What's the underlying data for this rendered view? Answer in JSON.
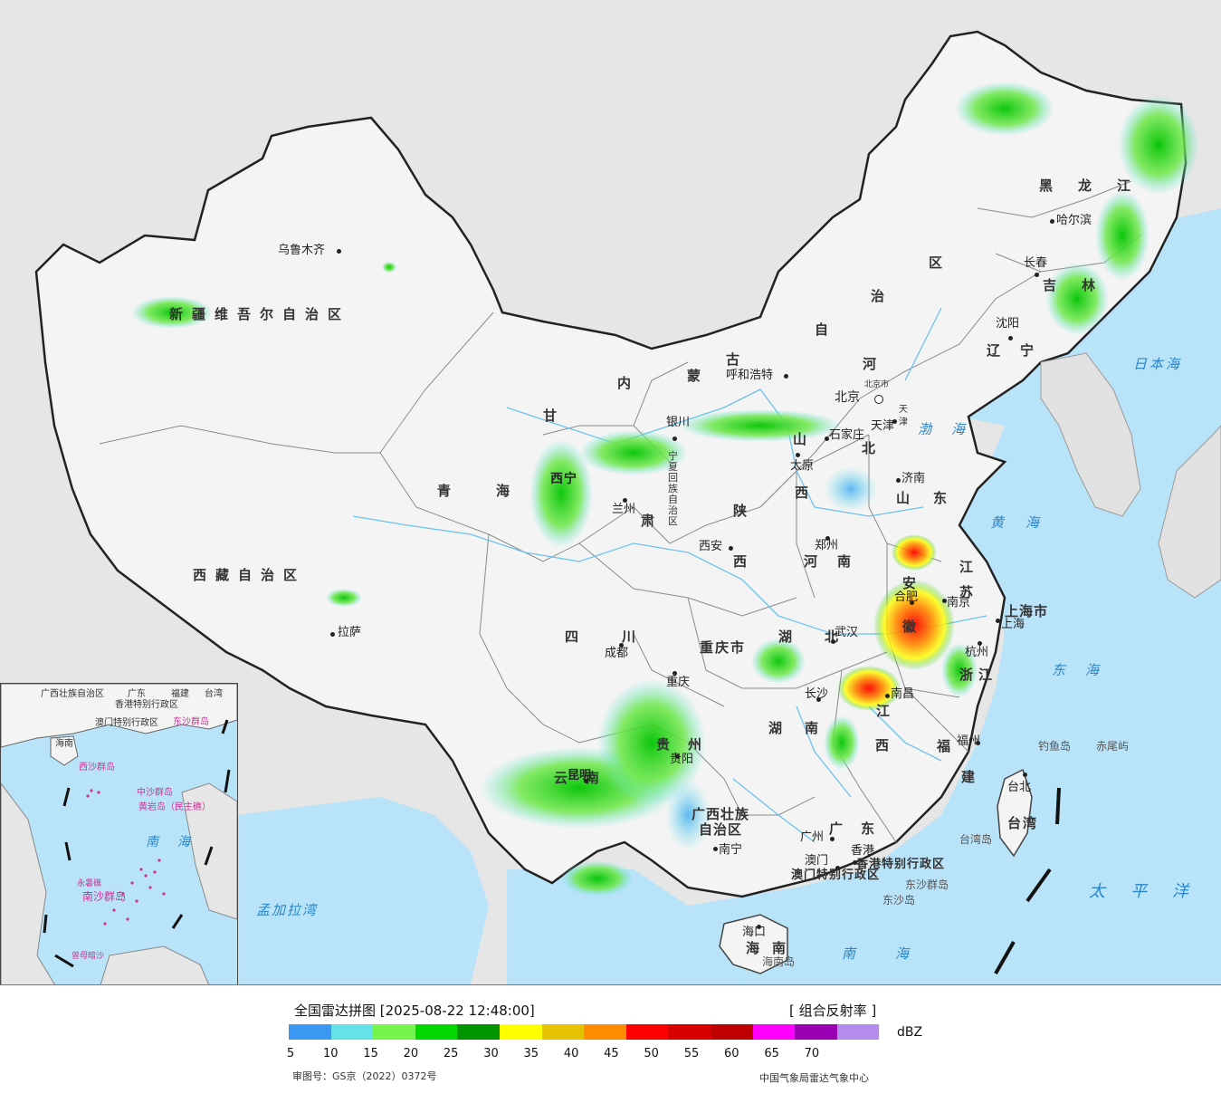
{
  "legend": {
    "title": "全国雷达拼图 [2025-08-22 12:48:00]",
    "product": "[ 组合反射率 ]",
    "unit": "dBZ",
    "colors": [
      "#3a97f2",
      "#63e3e8",
      "#76f44e",
      "#00d800",
      "#009400",
      "#ffff00",
      "#e6c200",
      "#ff8c00",
      "#ff0000",
      "#d90000",
      "#c00000",
      "#ff00ff",
      "#9b00b4",
      "#b48ceb"
    ],
    "ticks": [
      "5",
      "10",
      "15",
      "20",
      "25",
      "30",
      "35",
      "40",
      "45",
      "50",
      "55",
      "60",
      "65",
      "70"
    ],
    "approval": "审图号：GS京（2022）0372号",
    "source": "中国气象局雷达气象中心"
  },
  "regions": {
    "xinjiang": "新疆维吾尔自治区",
    "xizang": "西藏自治区",
    "qinghai": "青海",
    "gansu": "甘",
    "su_gansu": "肃",
    "sichuan": "四川",
    "yunnan": "云南",
    "guizhou": "贵州",
    "chongqing_mun": "重庆市",
    "nmg_nei": "内",
    "nmg_meng": "蒙",
    "nmg_gu": "古",
    "nmg_zi": "自",
    "nmg_zhi": "治",
    "nmg_qu": "区",
    "heilongjiang": "黑龙江",
    "jilin": "吉林",
    "liaoning": "辽宁",
    "hebei_he": "河",
    "hebei_bei": "北",
    "shanxi_shan": "山",
    "shanxi_xi": "西",
    "shandong": "山东",
    "henan": "河南",
    "shaanxi_shan": "陕",
    "shaanxi_xi": "西",
    "hubei": "湖北",
    "hunan_hu": "湖",
    "hunan_nan": "南",
    "jiangxi_jiang": "江",
    "jiangxi_xi": "西",
    "anhui_an": "安",
    "anhui_hui": "徽",
    "jiangsu": "江苏",
    "zhejiang": "浙江",
    "fujian_fu": "福",
    "fujian_jian": "建",
    "guangdong": "广东",
    "guangxi_1": "广西壮族",
    "guangxi_2": "自治区",
    "hainan": "海南",
    "taiwan": "台湾",
    "ningxia": "宁夏回族自治区",
    "shanghai_mun": "上海市",
    "hk_sar": "香港特别行政区",
    "macau_sar": "澳门特别行政区",
    "beijing_mun": "北京市",
    "tianjin_mun": "天津"
  },
  "cities": {
    "urumqi": "乌鲁木齐",
    "lhasa": "拉萨",
    "xining": "西宁",
    "lanzhou": "兰州",
    "yinchuan": "银川",
    "hohhot": "呼和浩特",
    "beijing": "北京",
    "tianjin": "天津",
    "shijiazhuang": "石家庄",
    "taiyuan": "太原",
    "jinan": "济南",
    "zhengzhou": "郑州",
    "xian": "西安",
    "chengdu": "成都",
    "chongqing": "重庆",
    "kunming": "昆明",
    "guiyang": "贵阳",
    "wuhan": "武汉",
    "changsha": "长沙",
    "nanchang": "南昌",
    "hefei": "合肥",
    "nanjing": "南京",
    "shanghai": "上海",
    "hangzhou": "杭州",
    "fuzhou": "福州",
    "taipei": "台北",
    "guangzhou": "广州",
    "hongkong": "香港",
    "macau": "澳门",
    "nanning": "南宁",
    "haikou": "海口",
    "shenyang": "沈阳",
    "changchun": "长春",
    "harbin": "哈尔滨"
  },
  "seas": {
    "japan_sea": "日本海",
    "bohai": "渤海",
    "yellow_sea": "黄海",
    "east_sea": "东海",
    "pacific": "太平洋",
    "south_sea": "南海",
    "bengal": "孟加拉湾"
  },
  "islands": {
    "diaoyu": "钓鱼岛",
    "chiwei": "赤尾屿",
    "taiwan_island": "台湾岛",
    "dongsha_islands": "东沙群岛",
    "dongsha_island": "东沙岛",
    "hainan_island": "海南岛"
  },
  "inset": {
    "guangxi": "广西壮族自治区",
    "guangdong": "广东",
    "fujian": "福建",
    "taiwan": "台湾",
    "hk": "香港特别行政区",
    "macau": "澳门特别行政区",
    "hainan": "海南",
    "dongsha": "东沙群岛",
    "xisha": "西沙群岛",
    "zhongsha": "中沙群岛",
    "huangyan": "黄岩岛（民主礁）",
    "nansha": "南沙群岛",
    "sea_nan": "南",
    "sea_hai": "海",
    "yongshu": "永暑礁",
    "zengmu": "曾母暗沙"
  }
}
